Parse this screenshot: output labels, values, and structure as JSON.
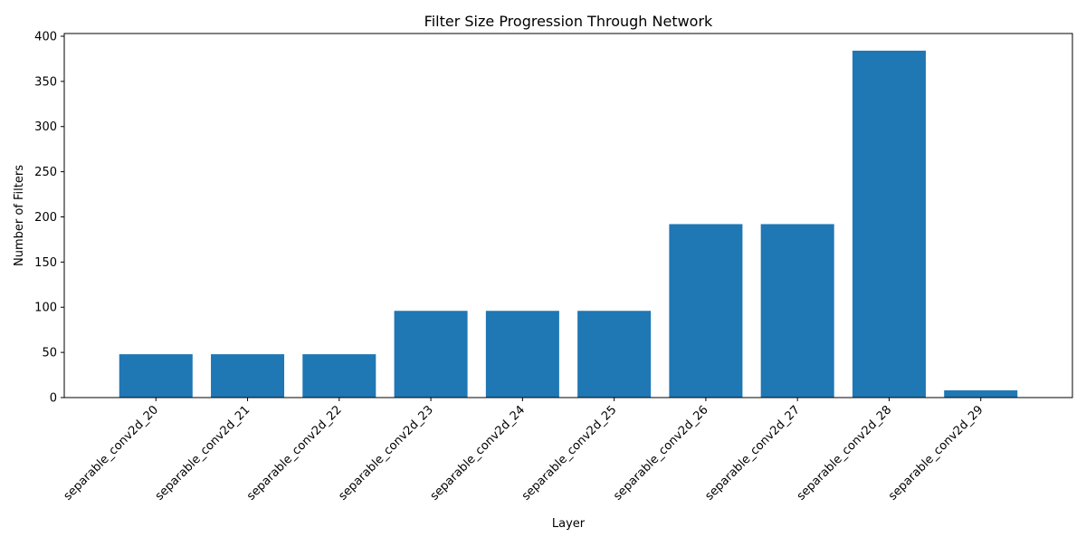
{
  "chart_data": {
    "type": "bar",
    "title": "Filter Size Progression Through Network",
    "xlabel": "Layer",
    "ylabel": "Number of Filters",
    "categories": [
      "separable_conv2d_20",
      "separable_conv2d_21",
      "separable_conv2d_22",
      "separable_conv2d_23",
      "separable_conv2d_24",
      "separable_conv2d_25",
      "separable_conv2d_26",
      "separable_conv2d_27",
      "separable_conv2d_28",
      "separable_conv2d_29"
    ],
    "values": [
      48,
      48,
      48,
      96,
      96,
      96,
      192,
      192,
      384,
      8
    ],
    "ylim": [
      0,
      403
    ],
    "yticks": [
      0,
      50,
      100,
      150,
      200,
      250,
      300,
      350,
      400
    ],
    "xtick_rotation": 45,
    "grid": false,
    "legend": "none",
    "bar_color": "#1f77b4"
  }
}
